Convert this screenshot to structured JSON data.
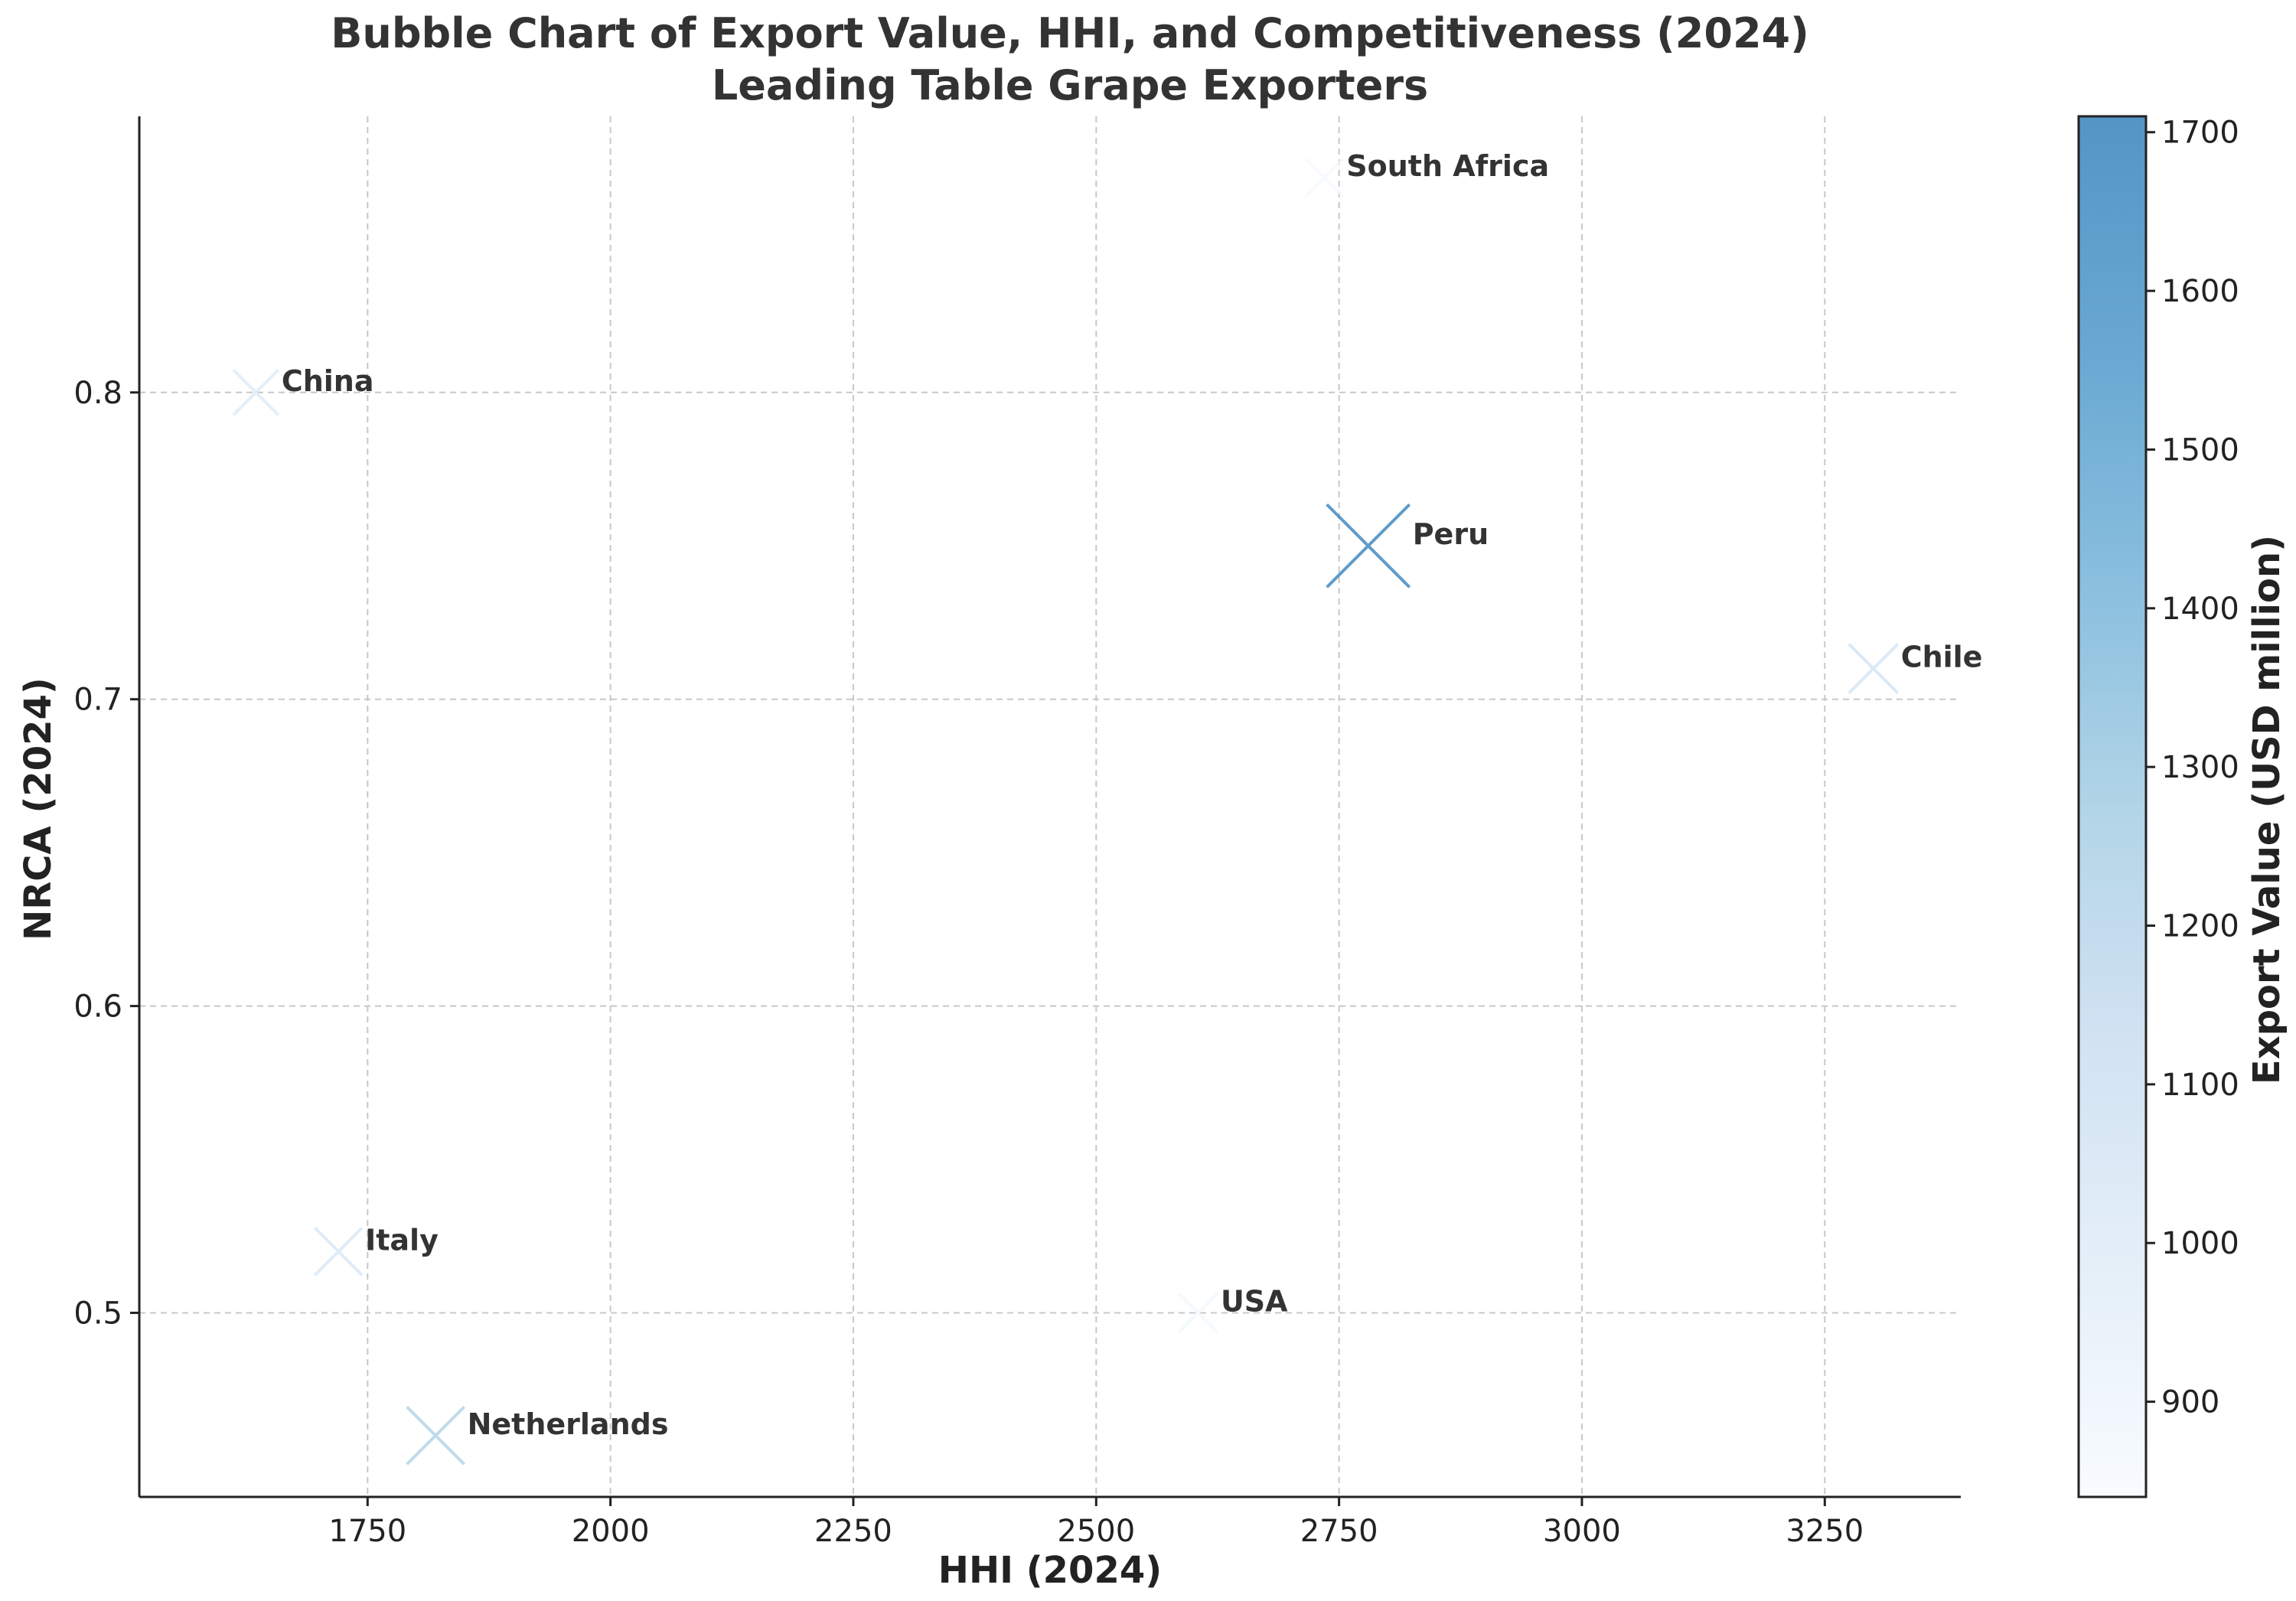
{
  "chart_data": {
    "type": "scatter",
    "title": "Bubble Chart of Export Value, HHI, and Competitiveness (2024)",
    "subtitle": "Leading Table Grape Exporters",
    "xlabel": "HHI (2024)",
    "ylabel": "NRCA (2024)",
    "xlim": [
      1515,
      3390
    ],
    "ylim": [
      0.44,
      0.89
    ],
    "xticks": [
      1750,
      2000,
      2250,
      2500,
      2750,
      3000,
      3250
    ],
    "yticks": [
      0.5,
      0.6,
      0.7,
      0.8
    ],
    "xtick_labels": [
      "1750",
      "2000",
      "2250",
      "2500",
      "2750",
      "3000",
      "3250"
    ],
    "ytick_labels": [
      "0.5",
      "0.6",
      "0.7",
      "0.8"
    ],
    "grid": true,
    "marker": "x",
    "colorbar": {
      "label": "Export Value (USD million)",
      "range": [
        840,
        1710
      ],
      "ticks": [
        900,
        1000,
        1100,
        1200,
        1300,
        1400,
        1500,
        1600,
        1700
      ],
      "tick_labels": [
        "900",
        "1000",
        "1100",
        "1200",
        "1300",
        "1400",
        "1500",
        "1600",
        "1700"
      ],
      "colormap": [
        "#f7fbff",
        "#deebf7",
        "#c6dbef",
        "#9ecae1",
        "#6baed6",
        "#4292c6",
        "#2a7ab8"
      ]
    },
    "points": [
      {
        "label": "China",
        "x": 1635,
        "y": 0.8,
        "value": 1000
      },
      {
        "label": "South Africa",
        "x": 2735,
        "y": 0.87,
        "value": 860
      },
      {
        "label": "Peru",
        "x": 2780,
        "y": 0.75,
        "value": 1710
      },
      {
        "label": "Chile",
        "x": 3300,
        "y": 0.71,
        "value": 1070
      },
      {
        "label": "Italy",
        "x": 1720,
        "y": 0.52,
        "value": 1040
      },
      {
        "label": "USA",
        "x": 2605,
        "y": 0.5,
        "value": 880
      },
      {
        "label": "Netherlands",
        "x": 1820,
        "y": 0.46,
        "value": 1230
      }
    ]
  }
}
